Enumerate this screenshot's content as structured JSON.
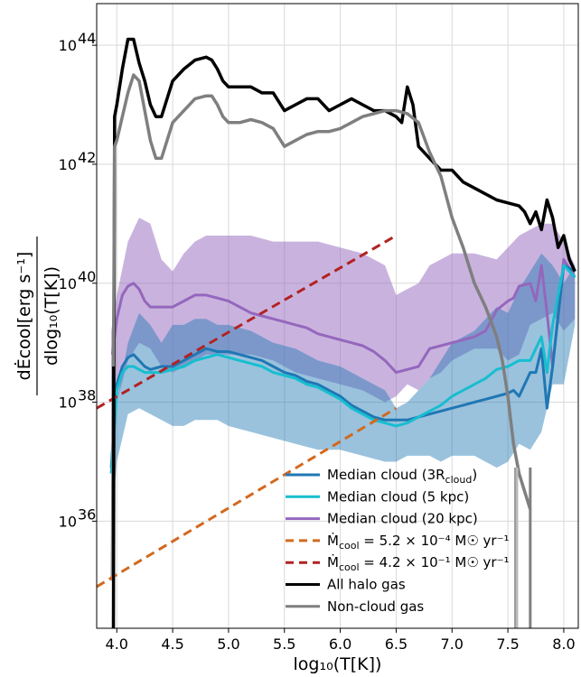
{
  "chart_data": {
    "type": "line",
    "xlabel": "log₁₀(T[K])",
    "ylabel": "dĖcool[erg s⁻¹] / dlog₁₀(T[K])",
    "xlim": [
      3.82,
      8.13
    ],
    "ylim_log10": [
      34.2,
      44.7
    ],
    "y_scale": "log",
    "grid": true,
    "legend_position": "lower-right",
    "x_ticks": [
      "4.0",
      "4.5",
      "5.0",
      "5.5",
      "6.0",
      "6.5",
      "7.0",
      "7.5",
      "8.0"
    ],
    "y_ticks": [
      {
        "base": "10",
        "exp": "44",
        "log10": 44
      },
      {
        "base": "10",
        "exp": "42",
        "log10": 42
      },
      {
        "base": "10",
        "exp": "40",
        "log10": 40
      },
      {
        "base": "10",
        "exp": "38",
        "log10": 38
      },
      {
        "base": "10",
        "exp": "36",
        "log10": 36
      }
    ],
    "bands": [
      {
        "name": "Median cloud (20 kpc) range",
        "color": "#9467bd",
        "opacity": 0.5,
        "x": [
          3.95,
          4.0,
          4.1,
          4.2,
          4.3,
          4.4,
          4.5,
          4.6,
          4.7,
          4.8,
          4.9,
          5.0,
          5.2,
          5.4,
          5.6,
          5.8,
          6.0,
          6.2,
          6.4,
          6.5,
          6.6,
          6.7,
          6.8,
          6.9,
          7.0,
          7.2,
          7.4,
          7.5,
          7.6,
          7.7,
          7.8,
          7.9,
          8.0,
          8.1
        ],
        "upper": [
          39.2,
          39.8,
          40.7,
          41.1,
          41.0,
          40.4,
          40.2,
          40.5,
          40.7,
          40.8,
          40.8,
          40.8,
          40.8,
          40.7,
          40.7,
          40.7,
          40.6,
          40.5,
          40.3,
          39.8,
          39.9,
          40.0,
          40.3,
          40.4,
          40.5,
          40.5,
          40.4,
          40.6,
          40.8,
          40.9,
          41.0,
          41.0,
          40.7,
          40.3
        ],
        "lower": [
          37.0,
          38.0,
          38.7,
          39.0,
          38.9,
          38.6,
          38.5,
          38.6,
          38.7,
          38.8,
          38.8,
          38.8,
          38.8,
          38.7,
          38.5,
          38.4,
          38.3,
          38.2,
          38.0,
          38.1,
          38.3,
          38.2,
          38.4,
          38.5,
          38.7,
          38.9,
          38.9,
          38.7,
          38.8,
          39.3,
          39.4,
          39.5,
          39.2,
          39.4
        ]
      },
      {
        "name": "Median cloud (3Rcloud) range",
        "color": "#1f77b4",
        "opacity": 0.45,
        "x": [
          3.95,
          4.0,
          4.1,
          4.2,
          4.3,
          4.4,
          4.5,
          4.6,
          4.7,
          4.8,
          4.9,
          5.0,
          5.2,
          5.4,
          5.6,
          5.8,
          6.0,
          6.2,
          6.4,
          6.5,
          6.6,
          6.7,
          6.8,
          6.9,
          7.0,
          7.2,
          7.4,
          7.5,
          7.6,
          7.7,
          7.8,
          7.9,
          8.0,
          8.1
        ],
        "upper": [
          36.6,
          38.0,
          39.0,
          39.5,
          39.3,
          39.0,
          39.3,
          39.3,
          39.4,
          39.4,
          39.3,
          39.3,
          39.2,
          39.0,
          38.9,
          38.7,
          38.6,
          38.4,
          38.2,
          37.9,
          38.0,
          38.2,
          38.4,
          38.7,
          39.0,
          39.2,
          39.6,
          39.5,
          39.9,
          40.2,
          40.5,
          40.3,
          40.0,
          40.3
        ],
        "lower": [
          35.9,
          37.0,
          37.8,
          37.9,
          37.8,
          37.7,
          37.6,
          37.6,
          37.7,
          37.7,
          37.7,
          37.6,
          37.5,
          37.4,
          37.3,
          37.2,
          37.2,
          37.1,
          37.0,
          37.0,
          37.1,
          37.1,
          37.1,
          37.0,
          37.1,
          37.1,
          36.9,
          37.0,
          37.3,
          37.2,
          37.5,
          38.3,
          38.3,
          39.3
        ]
      }
    ],
    "series": [
      {
        "name": "Median cloud (20 kpc)",
        "color": "#9467bd",
        "width": 3,
        "dash": "",
        "x": [
          3.96,
          4.0,
          4.05,
          4.1,
          4.15,
          4.2,
          4.25,
          4.3,
          4.4,
          4.5,
          4.6,
          4.7,
          4.8,
          4.9,
          5.0,
          5.1,
          5.2,
          5.3,
          5.4,
          5.5,
          5.6,
          5.7,
          5.8,
          5.9,
          6.0,
          6.1,
          6.2,
          6.3,
          6.4,
          6.5,
          6.6,
          6.7,
          6.8,
          6.9,
          7.0,
          7.1,
          7.2,
          7.3,
          7.4,
          7.5,
          7.55,
          7.6,
          7.7,
          7.75,
          7.8,
          7.85,
          7.9,
          8.0,
          8.1
        ],
        "y": [
          38.8,
          39.4,
          39.8,
          39.95,
          40.0,
          39.9,
          39.7,
          39.6,
          39.6,
          39.6,
          39.7,
          39.8,
          39.8,
          39.75,
          39.7,
          39.6,
          39.5,
          39.45,
          39.4,
          39.35,
          39.3,
          39.25,
          39.15,
          39.1,
          39.05,
          39.0,
          38.95,
          38.85,
          38.7,
          38.5,
          38.55,
          38.6,
          38.9,
          38.95,
          39.0,
          39.05,
          39.1,
          39.2,
          39.55,
          39.7,
          39.75,
          39.95,
          40.0,
          39.7,
          40.3,
          39.5,
          38.6,
          40.4,
          40.1
        ]
      },
      {
        "name": "Median cloud (3Rcloud)",
        "color": "#1f77b4",
        "width": 3,
        "dash": "",
        "x": [
          3.95,
          4.0,
          4.05,
          4.1,
          4.15,
          4.2,
          4.25,
          4.3,
          4.4,
          4.5,
          4.6,
          4.7,
          4.8,
          4.9,
          5.0,
          5.1,
          5.2,
          5.3,
          5.4,
          5.5,
          5.6,
          5.7,
          5.8,
          5.9,
          6.0,
          6.1,
          6.2,
          6.3,
          6.4,
          6.5,
          6.6,
          6.7,
          6.8,
          6.9,
          7.0,
          7.1,
          7.2,
          7.3,
          7.4,
          7.5,
          7.55,
          7.6,
          7.7,
          7.75,
          7.8,
          7.85,
          7.9,
          8.0,
          8.1
        ],
        "y": [
          36.9,
          38.3,
          38.6,
          38.75,
          38.8,
          38.7,
          38.6,
          38.55,
          38.6,
          38.6,
          38.7,
          38.8,
          38.9,
          38.85,
          38.85,
          38.8,
          38.75,
          38.7,
          38.6,
          38.5,
          38.45,
          38.35,
          38.3,
          38.2,
          38.1,
          37.95,
          37.85,
          37.75,
          37.7,
          37.7,
          37.7,
          37.75,
          37.8,
          37.85,
          37.9,
          37.95,
          38.0,
          38.05,
          38.1,
          38.15,
          38.2,
          38.1,
          38.5,
          38.5,
          38.9,
          37.9,
          38.6,
          40.3,
          40.2
        ]
      },
      {
        "name": "Median cloud (5 kpc)",
        "color": "#17becf",
        "width": 3,
        "dash": "",
        "x": [
          3.95,
          4.0,
          4.05,
          4.1,
          4.15,
          4.2,
          4.25,
          4.3,
          4.4,
          4.5,
          4.6,
          4.7,
          4.8,
          4.9,
          5.0,
          5.1,
          5.2,
          5.3,
          5.4,
          5.5,
          5.6,
          5.7,
          5.8,
          5.9,
          6.0,
          6.1,
          6.2,
          6.3,
          6.4,
          6.5,
          6.6,
          6.7,
          6.8,
          6.9,
          7.0,
          7.1,
          7.2,
          7.3,
          7.4,
          7.5,
          7.6,
          7.7,
          7.75,
          7.8,
          7.85,
          7.9,
          8.0,
          8.1
        ],
        "y": [
          36.8,
          38.2,
          38.5,
          38.6,
          38.6,
          38.55,
          38.5,
          38.5,
          38.5,
          38.55,
          38.6,
          38.7,
          38.75,
          38.8,
          38.75,
          38.7,
          38.65,
          38.6,
          38.5,
          38.45,
          38.4,
          38.3,
          38.25,
          38.15,
          38.05,
          37.9,
          37.8,
          37.7,
          37.65,
          37.6,
          37.65,
          37.75,
          37.85,
          37.95,
          38.1,
          38.2,
          38.3,
          38.4,
          38.55,
          38.6,
          38.7,
          38.7,
          38.9,
          39.1,
          38.5,
          39.3,
          40.3,
          40.1
        ]
      },
      {
        "name": "All halo gas",
        "color": "#000000",
        "width": 3.5,
        "dash": "",
        "x": [
          3.97,
          3.98,
          4.0,
          4.05,
          4.1,
          4.15,
          4.2,
          4.25,
          4.3,
          4.35,
          4.4,
          4.45,
          4.5,
          4.6,
          4.7,
          4.8,
          4.85,
          4.9,
          4.95,
          5.0,
          5.1,
          5.2,
          5.3,
          5.4,
          5.5,
          5.6,
          5.7,
          5.8,
          5.9,
          6.0,
          6.1,
          6.2,
          6.3,
          6.4,
          6.5,
          6.55,
          6.6,
          6.65,
          6.7,
          6.8,
          6.9,
          7.0,
          7.1,
          7.2,
          7.3,
          7.4,
          7.5,
          7.6,
          7.65,
          7.7,
          7.75,
          7.8,
          7.85,
          7.9,
          7.95,
          8.0,
          8.05,
          8.1
        ],
        "y": [
          34.2,
          42.8,
          43.0,
          43.6,
          44.1,
          44.1,
          43.7,
          43.4,
          43.0,
          42.8,
          42.8,
          43.1,
          43.4,
          43.6,
          43.75,
          43.8,
          43.75,
          43.6,
          43.4,
          43.3,
          43.3,
          43.3,
          43.2,
          43.2,
          42.9,
          43.0,
          43.1,
          43.1,
          42.9,
          43.0,
          43.1,
          43.0,
          42.9,
          42.9,
          42.8,
          42.7,
          43.3,
          43.0,
          42.3,
          42.1,
          41.9,
          41.9,
          41.7,
          41.6,
          41.5,
          41.4,
          41.35,
          41.3,
          41.2,
          41.0,
          41.2,
          40.9,
          41.4,
          41.1,
          40.6,
          40.8,
          40.4,
          40.2
        ]
      },
      {
        "name": "Non-cloud gas",
        "color": "#7f7f7f",
        "width": 3.5,
        "dash": "",
        "x": [
          3.96,
          3.98,
          4.0,
          4.05,
          4.1,
          4.15,
          4.2,
          4.25,
          4.3,
          4.35,
          4.4,
          4.45,
          4.5,
          4.6,
          4.7,
          4.8,
          4.85,
          4.9,
          4.95,
          5.0,
          5.1,
          5.2,
          5.3,
          5.4,
          5.5,
          5.6,
          5.7,
          5.8,
          5.9,
          6.0,
          6.1,
          6.2,
          6.3,
          6.4,
          6.5,
          6.6,
          6.7,
          6.8,
          6.9,
          7.0,
          7.1,
          7.2,
          7.3,
          7.4,
          7.45,
          7.5,
          7.55,
          7.6,
          7.65,
          7.7
        ],
        "y": [
          35.0,
          42.3,
          42.4,
          42.8,
          43.2,
          43.5,
          43.4,
          42.9,
          42.4,
          42.1,
          42.1,
          42.4,
          42.7,
          42.9,
          43.1,
          43.15,
          43.15,
          43.0,
          42.8,
          42.7,
          42.7,
          42.75,
          42.7,
          42.6,
          42.3,
          42.4,
          42.5,
          42.55,
          42.55,
          42.6,
          42.7,
          42.8,
          42.85,
          42.9,
          42.9,
          42.85,
          42.7,
          42.2,
          41.8,
          41.1,
          40.6,
          40.0,
          39.6,
          39.1,
          38.7,
          38.1,
          37.3,
          36.8,
          36.5,
          36.2
        ]
      },
      {
        "name": "Ṁcool = 5.2×10⁻⁴ M☉ yr⁻¹",
        "color": "#d2691e",
        "width": 3,
        "dash": "10,6",
        "x": [
          3.82,
          6.5
        ],
        "y": [
          34.9,
          37.9
        ]
      },
      {
        "name": "Ṁcool = 4.2×10⁻¹ M☉ yr⁻¹",
        "color": "#b22222",
        "width": 3,
        "dash": "10,6",
        "x": [
          3.82,
          6.5
        ],
        "y": [
          37.9,
          40.8
        ]
      }
    ],
    "vlines": [
      {
        "x": 3.97,
        "y0": 34.2,
        "y1": 38.6,
        "color": "#000000",
        "width": 3
      },
      {
        "x": 7.57,
        "y0": 34.2,
        "y1": 36.9,
        "color": "#7f7f7f",
        "width": 3
      },
      {
        "x": 7.58,
        "y0": 34.2,
        "y1": 36.9,
        "color": "#bbbbbb",
        "width": 3
      },
      {
        "x": 7.7,
        "y0": 34.2,
        "y1": 36.9,
        "color": "#7f7f7f",
        "width": 3
      }
    ],
    "legend": [
      {
        "label": "Median cloud (3R",
        "sub": "cloud",
        "after": ")",
        "color": "#1f77b4",
        "dash": false
      },
      {
        "label": "Median cloud (5 kpc)",
        "color": "#17becf",
        "dash": false
      },
      {
        "label": "Median cloud (20 kpc)",
        "color": "#9467bd",
        "dash": false
      },
      {
        "label": "Ṁ",
        "sub": "cool",
        "after": " = 5.2 × 10⁻⁴ M☉ yr⁻¹",
        "color": "#d2691e",
        "dash": true
      },
      {
        "label": "Ṁ",
        "sub": "cool",
        "after": " = 4.2 × 10⁻¹ M☉ yr⁻¹",
        "color": "#b22222",
        "dash": true
      },
      {
        "label": "All halo gas",
        "color": "#000000",
        "dash": false
      },
      {
        "label": "Non-cloud gas",
        "color": "#7f7f7f",
        "dash": false
      }
    ]
  }
}
